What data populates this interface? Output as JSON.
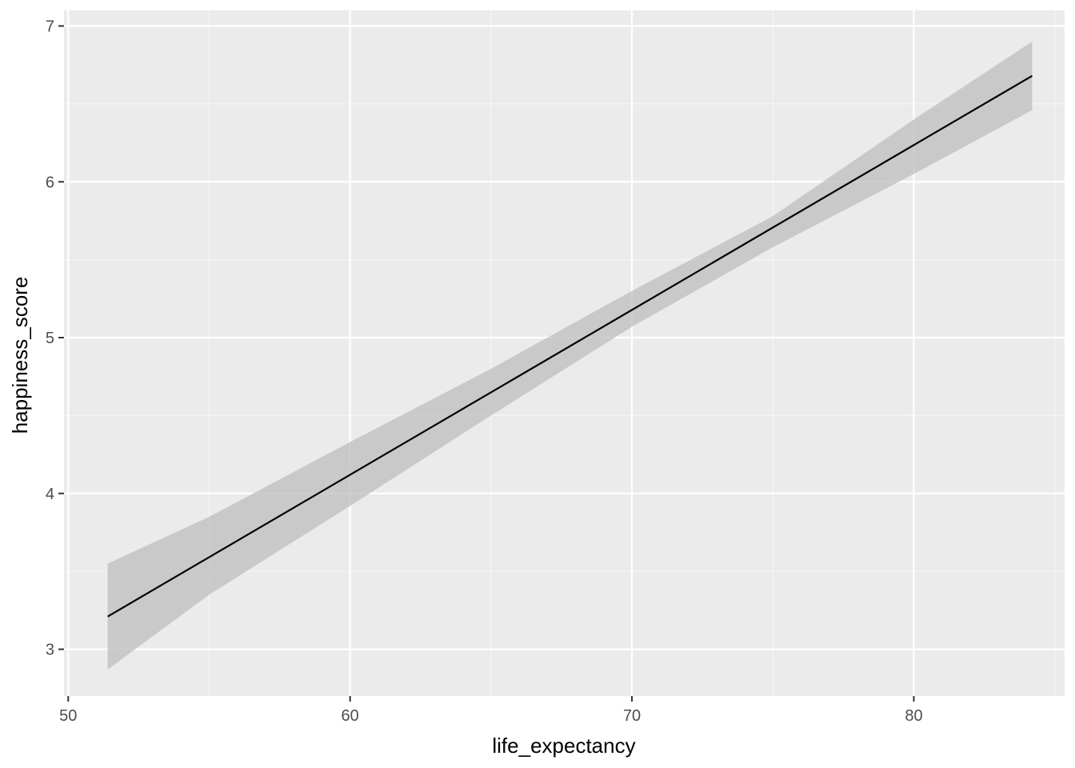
{
  "chart_data": {
    "type": "line",
    "title": "",
    "xlabel": "life_expectancy",
    "ylabel": "happiness_score",
    "xlim": [
      49.85,
      85.35
    ],
    "ylim": [
      2.7,
      7.1
    ],
    "x_major_ticks": [
      50,
      60,
      70,
      80
    ],
    "x_minor_ticks": [
      55,
      65,
      75,
      85
    ],
    "y_major_ticks": [
      3,
      4,
      5,
      6,
      7
    ],
    "y_minor_ticks": [
      3.5,
      4.5,
      5.5,
      6.5
    ],
    "x_tick_labels": [
      "50",
      "60",
      "70",
      "80"
    ],
    "y_tick_labels": [
      "3",
      "4",
      "5",
      "6",
      "7"
    ],
    "grid": true,
    "legend": "none",
    "series": [
      {
        "kind": "smooth-lm",
        "x": [
          51.4,
          84.2
        ],
        "y": [
          3.21,
          6.68
        ],
        "color": "#000000"
      }
    ],
    "ribbon": {
      "color": "#bdbdbd",
      "x": [
        51.4,
        55,
        60,
        65,
        70,
        75,
        80,
        84.2
      ],
      "lower": [
        2.87,
        3.35,
        3.92,
        4.5,
        5.07,
        5.58,
        6.05,
        6.46
      ],
      "upper": [
        3.55,
        3.85,
        4.33,
        4.8,
        5.3,
        5.78,
        6.4,
        6.9
      ]
    },
    "colors": {
      "panel": "#ebebeb",
      "grid_major": "#ffffff",
      "grid_minor": "#f5f5f5",
      "tick": "#333333"
    }
  }
}
